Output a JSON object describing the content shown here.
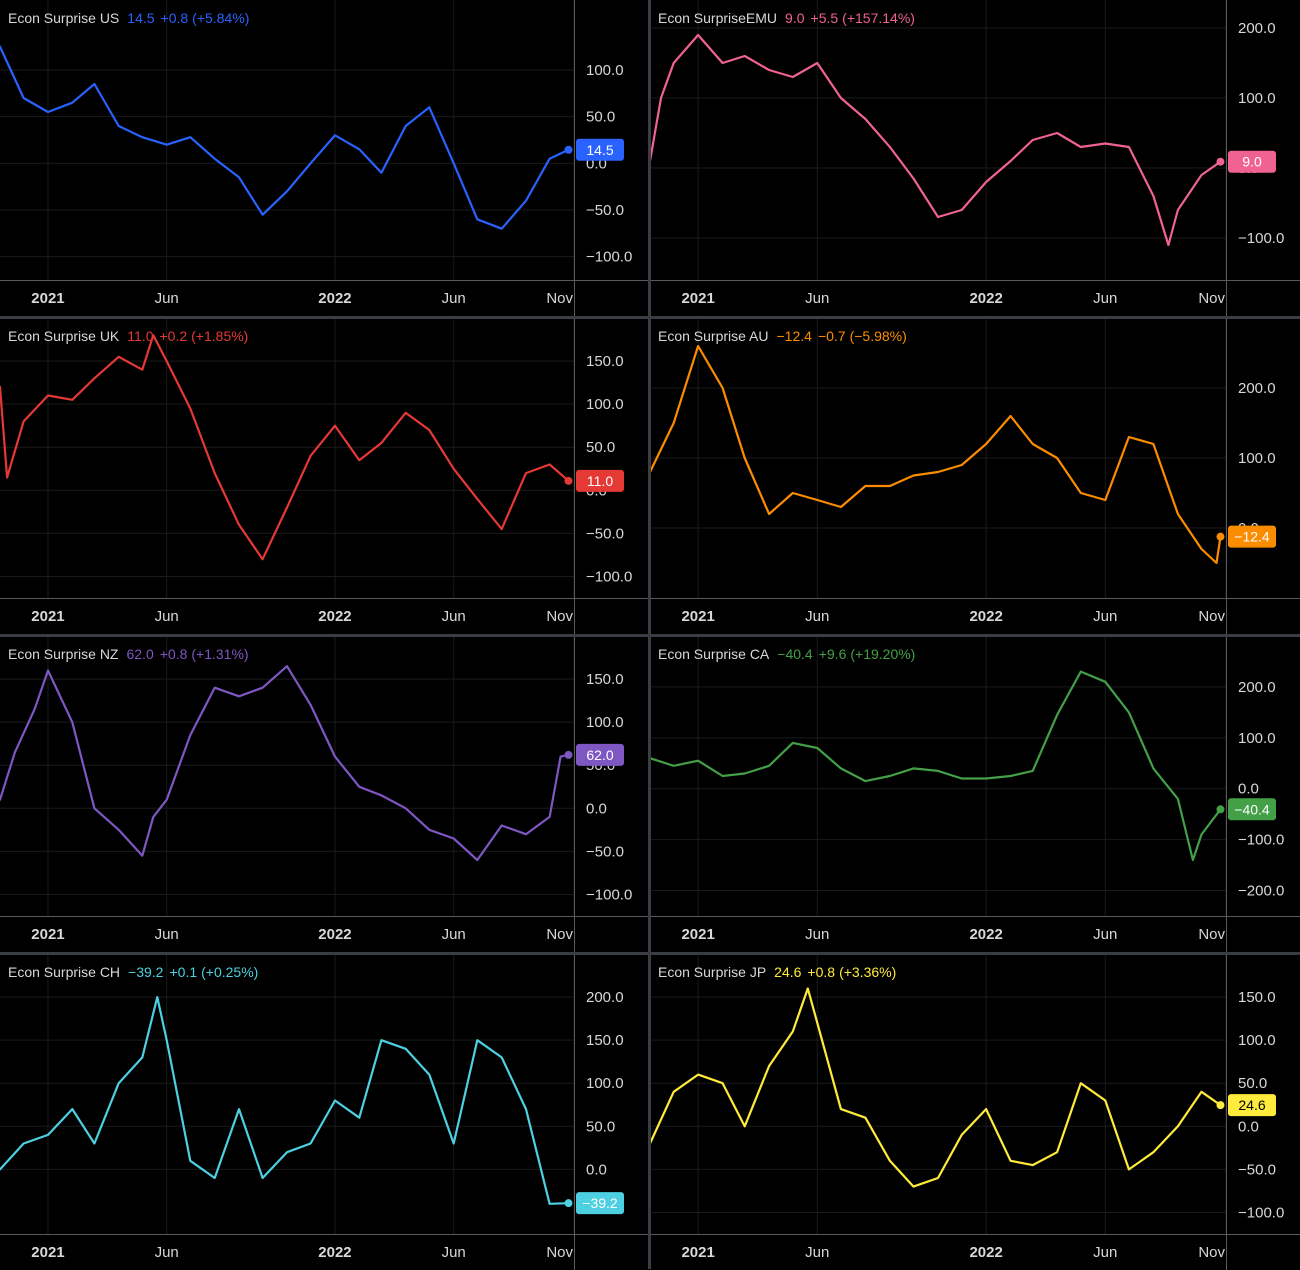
{
  "chart_data": [
    {
      "type": "line",
      "series_label": "Econ Surprise US",
      "last_value": "14.5",
      "change": "+0.8",
      "change_pct": "(+5.84%)",
      "value_tag": "14.5",
      "color": "#2962ff",
      "x_ticks": [
        "2021",
        "Jun",
        "2022",
        "Jun",
        "Nov"
      ],
      "y_ticks": [
        "100.0",
        "50.0",
        "0.0",
        "−50.0",
        "−100.0"
      ],
      "x_range": [
        "2020-11-01",
        "2022-11-01"
      ],
      "ylim": [
        -125,
        175
      ],
      "x": [
        "2020-11-01",
        "2020-12-01",
        "2021-01-01",
        "2021-02-01",
        "2021-03-01",
        "2021-04-01",
        "2021-05-01",
        "2021-06-01",
        "2021-07-01",
        "2021-08-01",
        "2021-09-01",
        "2021-10-01",
        "2021-11-01",
        "2021-12-01",
        "2022-01-01",
        "2022-02-01",
        "2022-03-01",
        "2022-04-01",
        "2022-05-01",
        "2022-06-01",
        "2022-07-01",
        "2022-08-01",
        "2022-09-01",
        "2022-10-01",
        "2022-10-25"
      ],
      "values": [
        125,
        70,
        55,
        65,
        85,
        40,
        28,
        20,
        28,
        5,
        -15,
        -55,
        -30,
        0,
        30,
        15,
        -10,
        40,
        60,
        0,
        -60,
        -70,
        -40,
        5,
        14.5
      ]
    },
    {
      "type": "line",
      "series_label": "Econ SurpriseEMU",
      "last_value": "9.0",
      "change": "+5.5",
      "change_pct": "(+157.14%)",
      "value_tag": "9.0",
      "color": "#f06292",
      "x_ticks": [
        "2021",
        "Jun",
        "2022",
        "Jun",
        "Nov"
      ],
      "y_ticks": [
        "200.0",
        "100.0",
        "0.0",
        "−100.0"
      ],
      "x_range": [
        "2020-11-01",
        "2022-11-01"
      ],
      "ylim": [
        -160,
        240
      ],
      "x": [
        "2020-11-01",
        "2020-11-15",
        "2020-12-01",
        "2021-01-01",
        "2021-02-01",
        "2021-03-01",
        "2021-04-01",
        "2021-05-01",
        "2021-06-01",
        "2021-07-01",
        "2021-08-01",
        "2021-09-01",
        "2021-10-01",
        "2021-11-01",
        "2021-12-01",
        "2022-01-01",
        "2022-02-01",
        "2022-03-01",
        "2022-04-01",
        "2022-05-01",
        "2022-06-01",
        "2022-07-01",
        "2022-08-01",
        "2022-08-20",
        "2022-09-01",
        "2022-10-01",
        "2022-10-25"
      ],
      "values": [
        10,
        100,
        150,
        190,
        150,
        160,
        140,
        130,
        150,
        100,
        70,
        30,
        -15,
        -70,
        -60,
        -20,
        10,
        40,
        50,
        30,
        35,
        30,
        -40,
        -110,
        -60,
        -10,
        9.0
      ]
    },
    {
      "type": "line",
      "series_label": "Econ Surprise UK",
      "last_value": "11.0",
      "change": "+0.2",
      "change_pct": "(+1.85%)",
      "value_tag": "11.0",
      "color": "#e53935",
      "x_ticks": [
        "2021",
        "Jun",
        "2022",
        "Jun",
        "Nov"
      ],
      "y_ticks": [
        "150.0",
        "100.0",
        "50.0",
        "0.0",
        "−50.0",
        "−100.0"
      ],
      "x_range": [
        "2020-11-01",
        "2022-11-01"
      ],
      "ylim": [
        -125,
        200
      ],
      "x": [
        "2020-11-01",
        "2020-11-10",
        "2020-12-01",
        "2021-01-01",
        "2021-02-01",
        "2021-03-01",
        "2021-04-01",
        "2021-05-01",
        "2021-05-15",
        "2021-06-01",
        "2021-07-01",
        "2021-08-01",
        "2021-09-01",
        "2021-10-01",
        "2021-11-01",
        "2021-12-01",
        "2022-01-01",
        "2022-02-01",
        "2022-03-01",
        "2022-04-01",
        "2022-05-01",
        "2022-06-01",
        "2022-07-01",
        "2022-08-01",
        "2022-09-01",
        "2022-10-01",
        "2022-10-25"
      ],
      "values": [
        120,
        15,
        80,
        110,
        105,
        130,
        155,
        140,
        180,
        150,
        95,
        20,
        -40,
        -80,
        -20,
        40,
        75,
        35,
        55,
        90,
        70,
        25,
        -10,
        -45,
        20,
        30,
        11.0
      ]
    },
    {
      "type": "line",
      "series_label": "Econ Surprise AU",
      "last_value": "−12.4",
      "change": "−0.7",
      "change_pct": "(−5.98%)",
      "value_tag": "−12.4",
      "color": "#fb8c00",
      "x_ticks": [
        "2021",
        "Jun",
        "2022",
        "Jun",
        "Nov"
      ],
      "y_ticks": [
        "200.0",
        "100.0",
        "0.0"
      ],
      "x_range": [
        "2020-11-01",
        "2022-11-01"
      ],
      "ylim": [
        -100,
        300
      ],
      "x": [
        "2020-11-01",
        "2020-12-01",
        "2021-01-01",
        "2021-02-01",
        "2021-03-01",
        "2021-04-01",
        "2021-05-01",
        "2021-06-01",
        "2021-07-01",
        "2021-08-01",
        "2021-09-01",
        "2021-10-01",
        "2021-11-01",
        "2021-12-01",
        "2022-01-01",
        "2022-02-01",
        "2022-03-01",
        "2022-04-01",
        "2022-05-01",
        "2022-06-01",
        "2022-07-01",
        "2022-08-01",
        "2022-09-01",
        "2022-10-01",
        "2022-10-20",
        "2022-10-25"
      ],
      "values": [
        80,
        150,
        260,
        200,
        100,
        20,
        50,
        40,
        30,
        60,
        60,
        75,
        80,
        90,
        120,
        160,
        120,
        100,
        50,
        40,
        130,
        120,
        20,
        -30,
        -50,
        -12.4
      ]
    },
    {
      "type": "line",
      "series_label": "Econ Surprise NZ",
      "last_value": "62.0",
      "change": "+0.8",
      "change_pct": "(+1.31%)",
      "value_tag": "62.0",
      "color": "#7e57c2",
      "x_ticks": [
        "2021",
        "Jun",
        "2022",
        "Jun",
        "Nov"
      ],
      "y_ticks": [
        "150.0",
        "100.0",
        "50.0",
        "0.0",
        "−50.0",
        "−100.0"
      ],
      "x_range": [
        "2020-11-01",
        "2022-11-01"
      ],
      "ylim": [
        -125,
        200
      ],
      "x": [
        "2020-11-01",
        "2020-11-20",
        "2020-12-15",
        "2021-01-01",
        "2021-02-01",
        "2021-03-01",
        "2021-04-01",
        "2021-05-01",
        "2021-05-15",
        "2021-06-01",
        "2021-07-01",
        "2021-08-01",
        "2021-09-01",
        "2021-10-01",
        "2021-11-01",
        "2021-12-01",
        "2022-01-01",
        "2022-02-01",
        "2022-03-01",
        "2022-04-01",
        "2022-05-01",
        "2022-06-01",
        "2022-07-01",
        "2022-08-01",
        "2022-09-01",
        "2022-10-01",
        "2022-10-15",
        "2022-10-25"
      ],
      "values": [
        10,
        65,
        115,
        160,
        100,
        0,
        -25,
        -55,
        -10,
        10,
        85,
        140,
        130,
        140,
        165,
        120,
        60,
        25,
        15,
        0,
        -25,
        -35,
        -60,
        -20,
        -30,
        -10,
        60,
        62.0
      ]
    },
    {
      "type": "line",
      "series_label": "Econ Surprise CA",
      "last_value": "−40.4",
      "change": "+9.6",
      "change_pct": "(+19.20%)",
      "value_tag": "−40.4",
      "color": "#43a047",
      "x_ticks": [
        "2021",
        "Jun",
        "2022",
        "Jun",
        "Nov"
      ],
      "y_ticks": [
        "200.0",
        "100.0",
        "0.0",
        "−100.0",
        "−200.0"
      ],
      "x_range": [
        "2020-11-01",
        "2022-11-01"
      ],
      "ylim": [
        -250,
        300
      ],
      "x": [
        "2020-11-01",
        "2020-12-01",
        "2021-01-01",
        "2021-02-01",
        "2021-03-01",
        "2021-04-01",
        "2021-05-01",
        "2021-06-01",
        "2021-07-01",
        "2021-08-01",
        "2021-09-01",
        "2021-10-01",
        "2021-11-01",
        "2021-12-01",
        "2022-01-01",
        "2022-02-01",
        "2022-03-01",
        "2022-04-01",
        "2022-05-01",
        "2022-06-01",
        "2022-07-01",
        "2022-08-01",
        "2022-09-01",
        "2022-09-20",
        "2022-10-01",
        "2022-10-25"
      ],
      "values": [
        60,
        45,
        55,
        25,
        30,
        45,
        90,
        80,
        40,
        15,
        25,
        40,
        35,
        20,
        20,
        25,
        35,
        145,
        230,
        210,
        150,
        40,
        -20,
        -140,
        -90,
        -40.4
      ]
    },
    {
      "type": "line",
      "series_label": "Econ Surprise CH",
      "last_value": "−39.2",
      "change": "+0.1",
      "change_pct": "(+0.25%)",
      "value_tag": "−39.2",
      "color": "#4dd0e1",
      "x_ticks": [
        "2021",
        "Jun",
        "2022",
        "Jun",
        "Nov"
      ],
      "y_ticks": [
        "200.0",
        "150.0",
        "100.0",
        "50.0",
        "0.0"
      ],
      "x_range": [
        "2020-11-01",
        "2022-11-01"
      ],
      "ylim": [
        -75,
        250
      ],
      "x": [
        "2020-11-01",
        "2020-12-01",
        "2021-01-01",
        "2021-02-01",
        "2021-03-01",
        "2021-04-01",
        "2021-05-01",
        "2021-05-20",
        "2021-06-01",
        "2021-07-01",
        "2021-08-01",
        "2021-09-01",
        "2021-10-01",
        "2021-11-01",
        "2021-12-01",
        "2022-01-01",
        "2022-02-01",
        "2022-03-01",
        "2022-04-01",
        "2022-05-01",
        "2022-06-01",
        "2022-07-01",
        "2022-08-01",
        "2022-09-01",
        "2022-10-01",
        "2022-10-25"
      ],
      "values": [
        0,
        30,
        40,
        70,
        30,
        100,
        130,
        200,
        150,
        10,
        -10,
        70,
        -10,
        20,
        30,
        80,
        60,
        150,
        140,
        110,
        30,
        150,
        130,
        70,
        -40,
        -39.2
      ]
    },
    {
      "type": "line",
      "series_label": "Econ Surprise JP",
      "last_value": "24.6",
      "change": "+0.8",
      "change_pct": "(+3.36%)",
      "value_tag": "24.6",
      "color": "#ffeb3b",
      "x_ticks": [
        "2021",
        "Jun",
        "2022",
        "Jun",
        "Nov"
      ],
      "y_ticks": [
        "150.0",
        "100.0",
        "50.0",
        "0.0",
        "−50.0",
        "−100.0"
      ],
      "x_range": [
        "2020-11-01",
        "2022-11-01"
      ],
      "ylim": [
        -125,
        200
      ],
      "x": [
        "2020-11-01",
        "2020-12-01",
        "2021-01-01",
        "2021-02-01",
        "2021-03-01",
        "2021-04-01",
        "2021-05-01",
        "2021-05-20",
        "2021-06-01",
        "2021-07-01",
        "2021-08-01",
        "2021-09-01",
        "2021-10-01",
        "2021-11-01",
        "2021-12-01",
        "2022-01-01",
        "2022-02-01",
        "2022-03-01",
        "2022-04-01",
        "2022-05-01",
        "2022-06-01",
        "2022-07-01",
        "2022-08-01",
        "2022-09-01",
        "2022-10-01",
        "2022-10-25"
      ],
      "values": [
        -20,
        40,
        60,
        50,
        0,
        70,
        110,
        160,
        120,
        20,
        10,
        -40,
        -70,
        -60,
        -10,
        20,
        -40,
        -45,
        -30,
        50,
        30,
        -50,
        -30,
        0,
        40,
        24.6
      ]
    }
  ]
}
